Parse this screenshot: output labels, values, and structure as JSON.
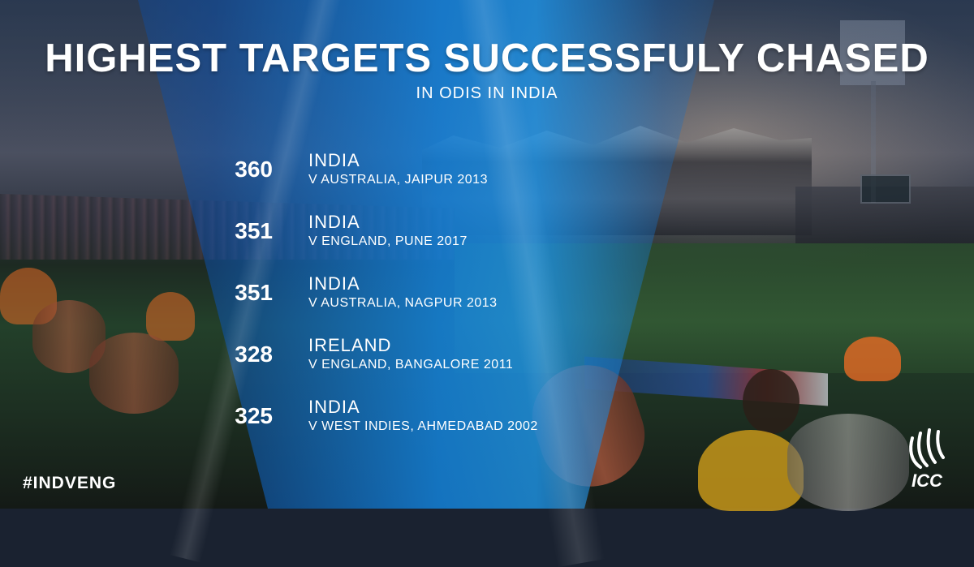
{
  "title": "HIGHEST TARGETS SUCCESSFULY CHASED",
  "subtitle": "IN ODIS IN INDIA",
  "entries": [
    {
      "score": "360",
      "team": "INDIA",
      "match": "V AUSTRALIA, JAIPUR 2013"
    },
    {
      "score": "351",
      "team": "INDIA",
      "match": "V ENGLAND, PUNE 2017"
    },
    {
      "score": "351",
      "team": "INDIA",
      "match": "V AUSTRALIA, NAGPUR 2013"
    },
    {
      "score": "328",
      "team": "IRELAND",
      "match": "V ENGLAND, BANGALORE 2011"
    },
    {
      "score": "325",
      "team": "INDIA",
      "match": "V WEST INDIES, AHMEDABAD 2002"
    }
  ],
  "hashtag": "#INDVENG",
  "logo": {
    "text": "ICC",
    "icon": "icc-logo-icon"
  },
  "colors": {
    "overlay_blue": "#1e96eb",
    "text": "#ffffff"
  }
}
